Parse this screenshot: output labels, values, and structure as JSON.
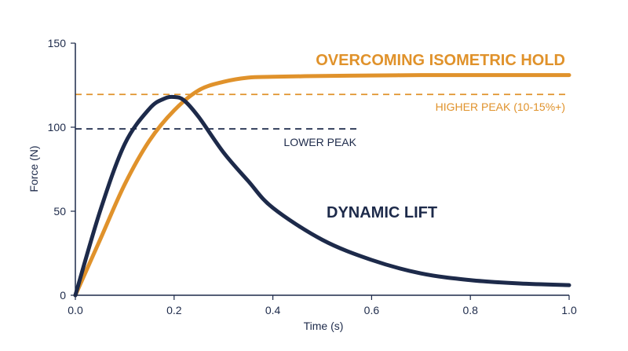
{
  "chart_data": {
    "type": "line",
    "title": "",
    "xlabel": "Time (s)",
    "ylabel": "Force (N)",
    "xlim": [
      0,
      1.0
    ],
    "ylim": [
      0,
      150
    ],
    "x_ticks": [
      "0.0",
      "0.2",
      "0.4",
      "0.6",
      "0.8",
      "1.0"
    ],
    "y_ticks": [
      "0",
      "50",
      "100",
      "150"
    ],
    "grid": false,
    "series": [
      {
        "name": "OVERCOMING ISOMETRIC HOLD",
        "color": "#e0922b",
        "x": [
          0,
          0.05,
          0.1,
          0.15,
          0.2,
          0.25,
          0.3,
          0.35,
          0.4,
          0.5,
          0.6,
          0.7,
          0.8,
          0.9,
          1.0
        ],
        "y": [
          0,
          33,
          66,
          92,
          110,
          122,
          127,
          129.5,
          130,
          130.5,
          130.8,
          131,
          131,
          131,
          131
        ]
      },
      {
        "name": "DYNAMIC LIFT",
        "color": "#1d2a4a",
        "x": [
          0,
          0.05,
          0.1,
          0.15,
          0.18,
          0.2,
          0.22,
          0.25,
          0.3,
          0.35,
          0.4,
          0.5,
          0.6,
          0.7,
          0.8,
          0.9,
          1.0
        ],
        "y": [
          0,
          50,
          90,
          111,
          117,
          118,
          116,
          106,
          85,
          68,
          52,
          33,
          21,
          13,
          9,
          7,
          6
        ]
      }
    ],
    "reference_lines": [
      {
        "label": "HIGHER PEAK (10-15%+)",
        "y": 119.5,
        "x_start": 0,
        "x_end": 1.0,
        "color": "#e0922b"
      },
      {
        "label": "LOWER PEAK",
        "y": 99,
        "x_start": 0,
        "x_end": 0.57,
        "color": "#1d2a4a"
      }
    ]
  }
}
